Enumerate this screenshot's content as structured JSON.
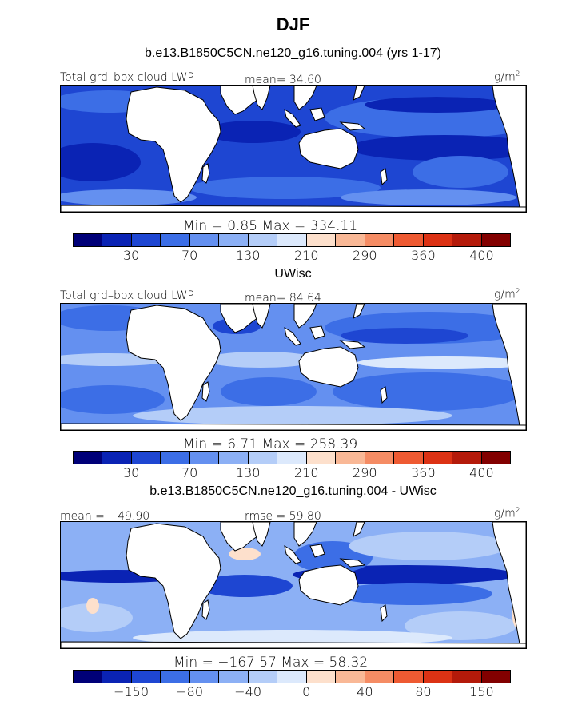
{
  "title": "DJF",
  "colors": [
    "#000078",
    "#0a23b4",
    "#1e46d2",
    "#3c6ee6",
    "#6490f0",
    "#8cb0f5",
    "#b4cdf8",
    "#dce9fc",
    "#fde0cc",
    "#f9b896",
    "#f58c64",
    "#ee5a32",
    "#dc3214",
    "#b41a0a",
    "#820000"
  ],
  "land_color": "#ffffff",
  "panels": [
    {
      "title": "b.e13.B1850C5CN.ne120_g16.tuning.004 (yrs 1-17)",
      "left_label": "Total grd–box cloud LWP",
      "mid_label": "mean=  34.60",
      "unit": "g/m",
      "unit_sup": "2",
      "min_max": "Min =    0.85  Max = 334.11",
      "tick_labels": [
        "30",
        "70",
        "130",
        "210",
        "290",
        "360",
        "400"
      ],
      "ocean_base": "#1e46d2",
      "variant": "p1"
    },
    {
      "title": "UWisc",
      "left_label": "Total grd–box cloud LWP",
      "mid_label": "mean=  84.64",
      "unit": "g/m",
      "unit_sup": "2",
      "min_max": "Min =    6.71  Max = 258.39",
      "tick_labels": [
        "30",
        "70",
        "130",
        "210",
        "290",
        "360",
        "400"
      ],
      "ocean_base": "#6490f0",
      "variant": "p2"
    },
    {
      "title": "b.e13.B1850C5CN.ne120_g16.tuning.004 - UWisc",
      "left_label": "mean = −49.90",
      "mid_label": "rmse =  59.80",
      "unit": "g/m",
      "unit_sup": "2",
      "min_max": "Min = −167.57  Max =  58.32",
      "tick_labels": [
        "−150",
        "−80",
        "−40",
        "0",
        "40",
        "80",
        "150"
      ],
      "ocean_base": "#8cb0f5",
      "variant": "p3"
    }
  ]
}
